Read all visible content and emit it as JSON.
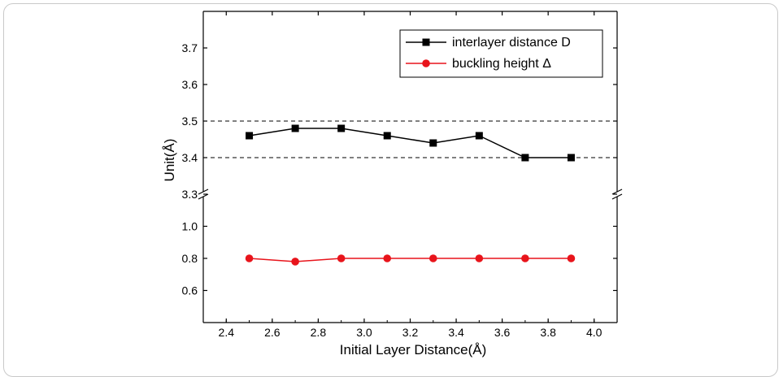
{
  "chart_data": {
    "type": "line",
    "xlabel": "Initial Layer Distance(Å)",
    "ylabel": "Unit(Å)",
    "x": [
      2.5,
      2.7,
      2.9,
      3.1,
      3.3,
      3.5,
      3.7,
      3.9
    ],
    "xlim": [
      2.3,
      4.1
    ],
    "x_ticks": [
      "2.4",
      "2.6",
      "2.8",
      "3.0",
      "3.2",
      "3.4",
      "3.6",
      "3.8",
      "4.0"
    ],
    "broken_y_axis": true,
    "upper_panel": {
      "ylim": [
        3.3,
        3.8
      ],
      "y_ticks": [
        "3.3",
        "3.4",
        "3.5",
        "3.6",
        "3.7"
      ]
    },
    "lower_panel": {
      "ylim": [
        0.4,
        1.2
      ],
      "y_ticks": [
        "0.6",
        "0.8",
        "1.0"
      ]
    },
    "reference_lines": [
      3.4,
      3.5
    ],
    "series": [
      {
        "name": "interlayer distance D",
        "marker": "square",
        "color": "#000000",
        "panel": "upper",
        "values": [
          3.46,
          3.48,
          3.48,
          3.46,
          3.44,
          3.46,
          3.4,
          3.4
        ]
      },
      {
        "name": "buckling height Δ",
        "marker": "circle",
        "color": "#e8141b",
        "panel": "lower",
        "values": [
          0.8,
          0.78,
          0.8,
          0.8,
          0.8,
          0.8,
          0.8,
          0.8
        ]
      }
    ],
    "legend_position": "top-right",
    "grid": false
  }
}
